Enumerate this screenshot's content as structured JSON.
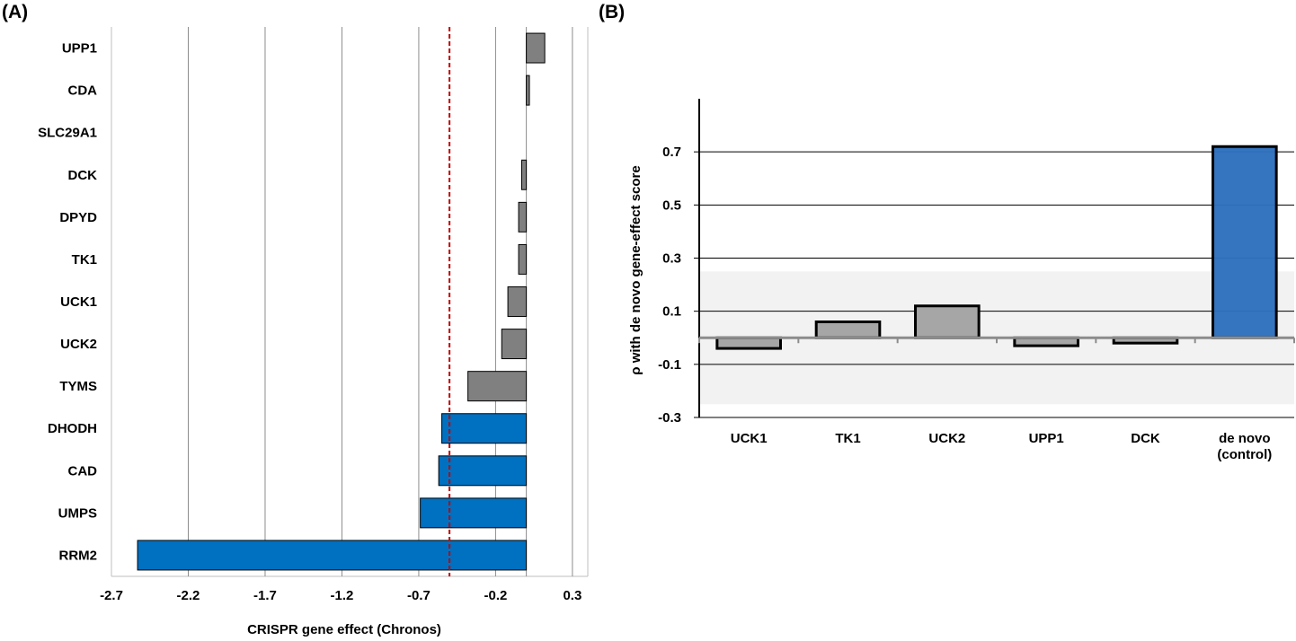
{
  "chart_data": [
    {
      "panel_label": "(A)",
      "type": "bar",
      "orientation": "horizontal",
      "categories": [
        "UPP1",
        "CDA",
        "SLC29A1",
        "DCK",
        "DPYD",
        "TK1",
        "UCK1",
        "UCK2",
        "TYMS",
        "DHODH",
        "CAD",
        "UMPS",
        "RRM2"
      ],
      "values": [
        0.12,
        0.02,
        0.0,
        -0.03,
        -0.05,
        -0.05,
        -0.12,
        -0.16,
        -0.38,
        -0.55,
        -0.57,
        -0.69,
        -2.53
      ],
      "bar_colors": [
        "#808080",
        "#808080",
        "#808080",
        "#808080",
        "#808080",
        "#808080",
        "#808080",
        "#808080",
        "#808080",
        "#0070c0",
        "#0070c0",
        "#0070c0",
        "#0070c0"
      ],
      "xlabel": "CRISPR gene effect (Chronos)",
      "xlim": [
        -2.7,
        0.4
      ],
      "xticks": [
        -2.7,
        -2.2,
        -1.7,
        -1.2,
        -0.7,
        -0.2,
        0.3
      ],
      "xtick_labels": [
        "-2.7",
        "-2.2",
        "-1.7",
        "-1.2",
        "-0.7",
        "-0.2",
        "0.3"
      ],
      "reference_line": {
        "x": -0.5,
        "style": "dashed",
        "color": "#c00000"
      },
      "grid": "vertical"
    },
    {
      "panel_label": "(B)",
      "type": "bar",
      "orientation": "vertical",
      "categories": [
        "UCK1",
        "TK1",
        "UCK2",
        "UPP1",
        "DCK",
        "de novo (control)"
      ],
      "category_lines": [
        [
          "UCK1"
        ],
        [
          "TK1"
        ],
        [
          "UCK2"
        ],
        [
          "UPP1"
        ],
        [
          "DCK"
        ],
        [
          "de novo",
          "(control)"
        ]
      ],
      "values": [
        -0.04,
        0.06,
        0.12,
        -0.03,
        -0.02,
        0.72
      ],
      "bar_colors": [
        "#a6a6a6",
        "#a6a6a6",
        "#a6a6a6",
        "#a6a6a6",
        "#a6a6a6",
        "#2e6fbd"
      ],
      "ylabel": "ρ with de novo gene-effect score",
      "ylim": [
        -0.3,
        0.9
      ],
      "yticks": [
        -0.3,
        -0.1,
        0.1,
        0.3,
        0.5,
        0.7
      ],
      "ytick_labels": [
        "-0.3",
        "-0.1",
        "0.1",
        "0.3",
        "0.5",
        "0.7"
      ],
      "shaded_band": [
        -0.25,
        0.25
      ],
      "grid": "horizontal"
    }
  ]
}
